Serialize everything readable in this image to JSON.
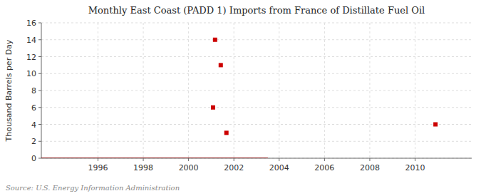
{
  "chart_data": {
    "type": "line",
    "title": "Monthly East Coast (PADD 1) Imports from France of Distillate Fuel Oil",
    "ylabel": "Thousand Barrels per Day",
    "annotations": [
      "Source: U.S. Energy Information Administration"
    ],
    "series": [
      {
        "type": "line",
        "color": "#8b0000",
        "x": [
          1993.5,
          2003.5
        ],
        "values": [
          0,
          0
        ]
      },
      {
        "type": "scatter",
        "color": "#cc0000",
        "marker": "square",
        "x": [
          2001.08,
          2001.17,
          2001.42,
          2001.67,
          2010.9
        ],
        "values": [
          6,
          14,
          11,
          3,
          4
        ]
      }
    ],
    "xlim": [
      1993.5,
      2012.5
    ],
    "xticks": [
      1996,
      1998,
      2000,
      2002,
      2004,
      2006,
      2008,
      2010
    ],
    "ylim": [
      0,
      16
    ],
    "yticks": [
      0,
      2,
      4,
      6,
      8,
      10,
      12,
      14,
      16
    ],
    "grid": true
  }
}
